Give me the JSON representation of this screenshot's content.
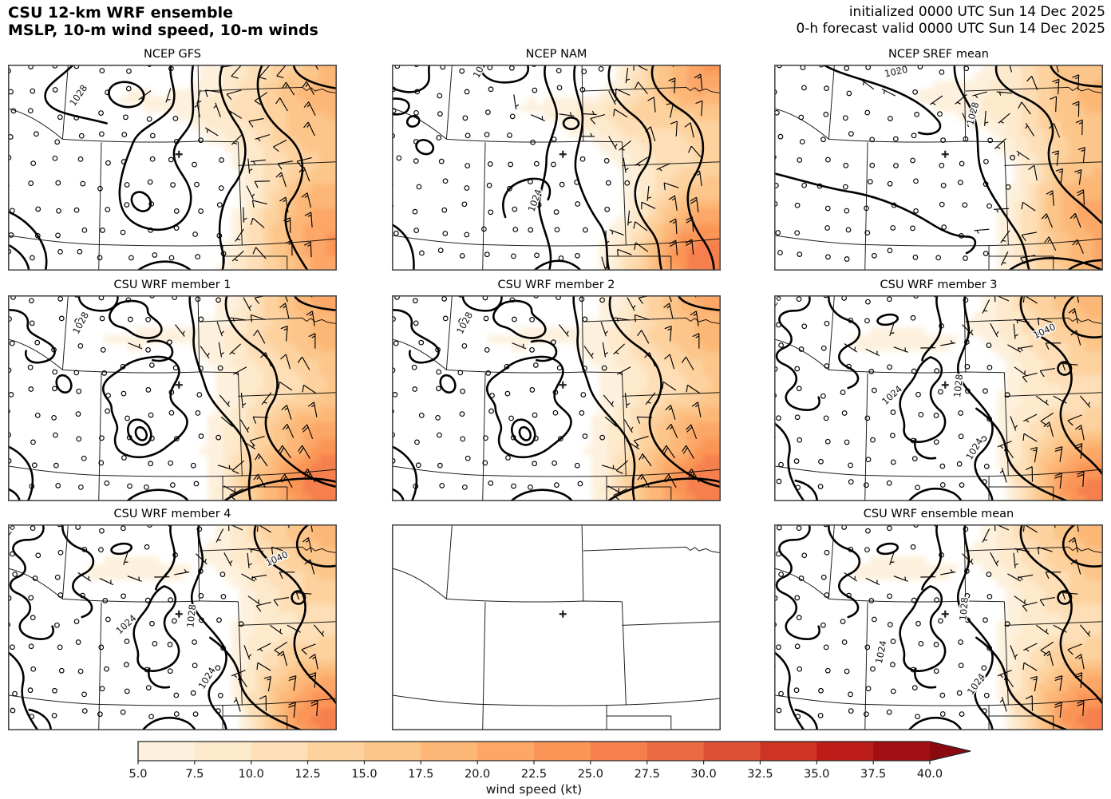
{
  "header": {
    "title_line1": "CSU 12-km WRF ensemble",
    "title_line2": "MSLP, 10-m wind speed, 10-m winds",
    "init_line": "initialized 0000 UTC Sun 14 Dec 2025",
    "valid_line": "0-h forecast valid 0000 UTC Sun 14 Dec 2025"
  },
  "chart_data": {
    "type": "heatmap",
    "title": "CSU 12-km WRF ensemble — MSLP, 10-m wind speed, 10-m winds",
    "grid": {
      "rows": 3,
      "cols": 3
    },
    "map_region": "Colorado and surrounding states (WY, NE, SD, KS, OK, NM, UT) with a + marker in north-central Colorado",
    "panels": [
      {
        "title": "NCEP GFS",
        "row": 1,
        "col": 1,
        "empty": false,
        "contour_set": "A",
        "seed": 11,
        "mslp_labels": [
          {
            "t": "1028",
            "x": 0.215,
            "y": 0.15,
            "r": -55
          }
        ]
      },
      {
        "title": "NCEP NAM",
        "row": 1,
        "col": 2,
        "empty": false,
        "contour_set": "B",
        "seed": 22,
        "mslp_labels": [
          {
            "t": "1024",
            "x": 0.272,
            "y": 0.012,
            "r": -62
          },
          {
            "t": "1024",
            "x": 0.436,
            "y": 0.66,
            "r": -70
          }
        ]
      },
      {
        "title": "NCEP SREF mean",
        "row": 1,
        "col": 3,
        "empty": false,
        "contour_set": "C",
        "seed": 33,
        "mslp_labels": [
          {
            "t": "1020",
            "x": 0.371,
            "y": 0.035,
            "r": -12
          },
          {
            "t": "1028",
            "x": 0.605,
            "y": 0.238,
            "r": -75
          }
        ]
      },
      {
        "title": "CSU WRF member 1",
        "row": 2,
        "col": 1,
        "empty": false,
        "contour_set": "D",
        "seed": 44,
        "mslp_labels": [
          {
            "t": "1028",
            "x": 0.222,
            "y": 0.135,
            "r": -62
          }
        ]
      },
      {
        "title": "CSU WRF member 2",
        "row": 2,
        "col": 2,
        "empty": false,
        "contour_set": "D",
        "seed": 44,
        "mslp_labels": [
          {
            "t": "1028",
            "x": 0.222,
            "y": 0.135,
            "r": -62
          }
        ]
      },
      {
        "title": "CSU WRF member 3",
        "row": 2,
        "col": 3,
        "empty": false,
        "contour_set": "E",
        "seed": 55,
        "mslp_labels": [
          {
            "t": "1028",
            "x": -0.004,
            "y": 0.048,
            "r": -55
          },
          {
            "t": "1040",
            "x": 0.822,
            "y": 0.175,
            "r": -25
          },
          {
            "t": "1024",
            "x": 0.359,
            "y": 0.486,
            "r": -42
          },
          {
            "t": "1028",
            "x": 0.561,
            "y": 0.44,
            "r": -84
          },
          {
            "t": "1024",
            "x": 0.61,
            "y": 0.747,
            "r": -58
          }
        ]
      },
      {
        "title": "CSU WRF member 4",
        "row": 3,
        "col": 1,
        "empty": false,
        "contour_set": "E",
        "seed": 55,
        "mslp_labels": [
          {
            "t": "1028",
            "x": -0.004,
            "y": 0.048,
            "r": -55
          },
          {
            "t": "1040",
            "x": 0.818,
            "y": 0.168,
            "r": -25
          },
          {
            "t": "1024",
            "x": 0.36,
            "y": 0.487,
            "r": -42
          },
          {
            "t": "1028",
            "x": 0.559,
            "y": 0.445,
            "r": -84
          },
          {
            "t": "1024",
            "x": 0.606,
            "y": 0.747,
            "r": -58
          }
        ]
      },
      {
        "title": "",
        "row": 3,
        "col": 2,
        "empty": true,
        "contour_set": "",
        "seed": 0,
        "mslp_labels": []
      },
      {
        "title": "CSU WRF ensemble mean",
        "row": 3,
        "col": 3,
        "empty": false,
        "contour_set": "E",
        "seed": 55,
        "mslp_labels": [
          {
            "t": "1028",
            "x": 0.578,
            "y": 0.41,
            "r": -85
          },
          {
            "t": "1024",
            "x": 0.326,
            "y": 0.62,
            "r": -78
          },
          {
            "t": "1024",
            "x": 0.615,
            "y": 0.776,
            "r": -55
          }
        ]
      }
    ],
    "colorbar": {
      "label": "wind speed (kt)",
      "orientation": "horizontal",
      "tick_labels": [
        "5.0",
        "7.5",
        "10.0",
        "12.5",
        "15.0",
        "17.5",
        "20.0",
        "22.5",
        "25.0",
        "27.5",
        "30.0",
        "32.5",
        "35.0",
        "37.5",
        "40.0"
      ],
      "tick_values": [
        5.0,
        7.5,
        10.0,
        12.5,
        15.0,
        17.5,
        20.0,
        22.5,
        25.0,
        27.5,
        30.0,
        32.5,
        35.0,
        37.5,
        40.0
      ],
      "bin_colors": [
        "#fdf1de",
        "#fde9cb",
        "#fddeb6",
        "#fdd29e",
        "#fcc589",
        "#fcb777",
        "#fca667",
        "#fb9557",
        "#f5804d",
        "#ec6a42",
        "#de4f33",
        "#ce3424",
        "#bc1c17",
        "#a30e12"
      ],
      "extend_color": "#8b0a10",
      "extend": "max"
    },
    "station_marker": {
      "symbol": "+",
      "x": 0.52,
      "y": 0.435
    }
  }
}
